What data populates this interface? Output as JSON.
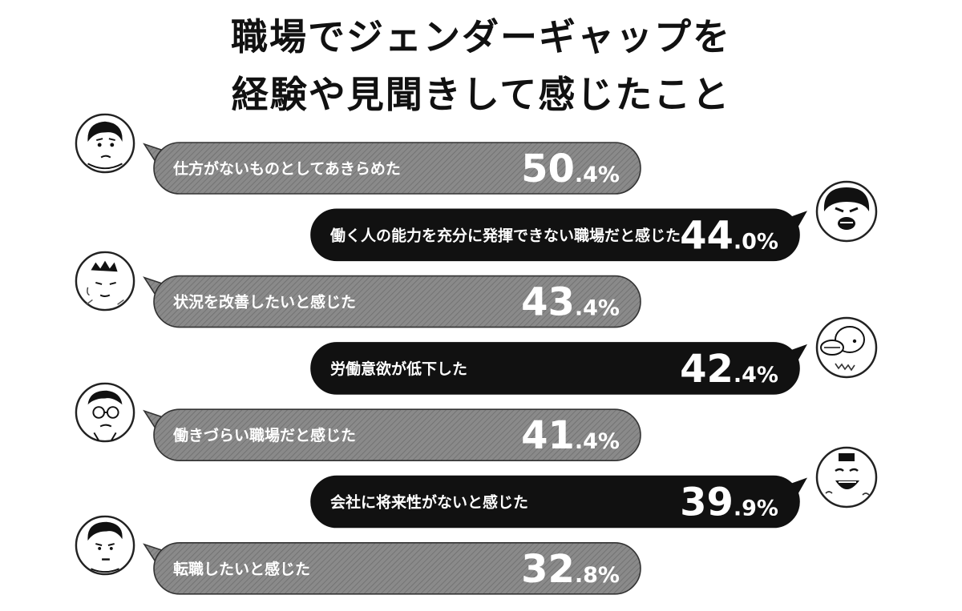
{
  "title": {
    "line1": "職場でジェンダーギャップを",
    "line2": "経験や見聞きして感じたこと"
  },
  "colors": {
    "bar_dark": "#111111",
    "bar_gray": "#8a8a8a",
    "text": "#ffffff"
  },
  "chart_data": {
    "type": "bar",
    "unit": "%",
    "categories": [
      "仕方がないものとしてあきらめた",
      "働く人の能力を充分に発揮できない職場だと感じた",
      "状況を改善したいと感じた",
      "労働意欲が低下した",
      "働きづらい職場だと感じた",
      "会社に将来性がないと感じた",
      "転職したいと感じた"
    ],
    "values": [
      50.4,
      44.0,
      43.4,
      42.4,
      41.4,
      39.9,
      32.8
    ],
    "values_display": [
      {
        "int": "50",
        "dec": ".4%"
      },
      {
        "int": "44",
        "dec": ".0%"
      },
      {
        "int": "43",
        "dec": ".4%"
      },
      {
        "int": "42",
        "dec": ".4%"
      },
      {
        "int": "41",
        "dec": ".4%"
      },
      {
        "int": "39",
        "dec": ".9%"
      },
      {
        "int": "32",
        "dec": ".8%"
      }
    ]
  },
  "avatars": [
    "worried-woman-icon",
    "shouting-woman-icon",
    "sweating-man-icon",
    "bald-man-icon",
    "glasses-man-icon",
    "laughing-man-icon",
    "pouting-boy-icon"
  ]
}
